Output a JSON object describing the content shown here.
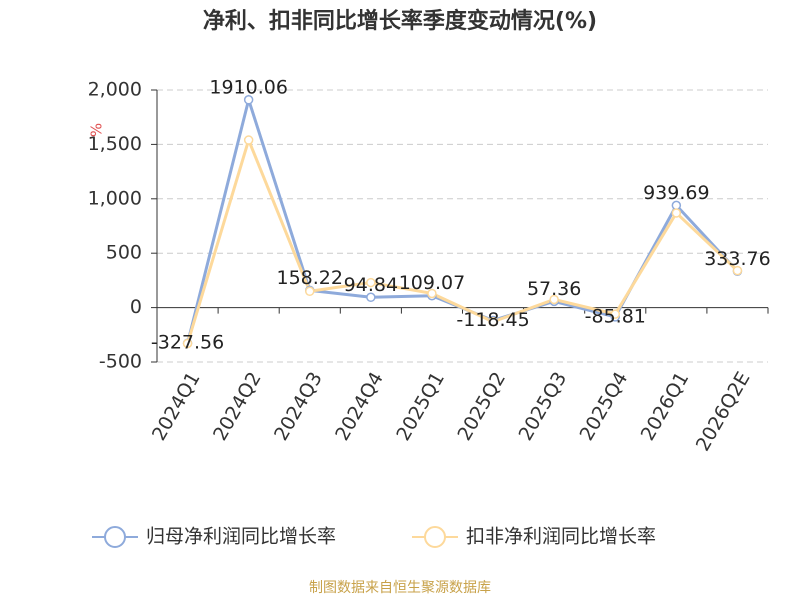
{
  "chart_data": {
    "type": "line",
    "title": "净利、扣非同比增长率季度变动情况(%)",
    "y_unit": "%",
    "source": "制图数据来自恒生聚源数据库",
    "categories": [
      "2024Q1",
      "2024Q2",
      "2024Q3",
      "2024Q4",
      "2025Q1",
      "2025Q2",
      "2025Q3",
      "2025Q4",
      "2026Q1",
      "2026Q2E"
    ],
    "series": [
      {
        "name": "归母净利润同比增长率",
        "color": "#8eaadb",
        "values": [
          -327.56,
          1910.06,
          158.22,
          94.84,
          109.07,
          -118.45,
          57.36,
          -85.81,
          939.69,
          333.76
        ],
        "show_labels": true
      },
      {
        "name": "扣非净利润同比增长率",
        "color": "#fdd99b",
        "values": [
          -330,
          1540,
          150,
          230,
          130,
          -130,
          75,
          -60,
          870,
          340
        ],
        "show_labels": false
      }
    ],
    "ylim": [
      -500,
      2000
    ],
    "yticks": [
      -500,
      0,
      500,
      {
        "value": 1000,
        "label": "1,000"
      },
      {
        "value": 1500,
        "label": "1,500"
      },
      {
        "value": 2000,
        "label": "2,000"
      }
    ],
    "grid": true
  }
}
